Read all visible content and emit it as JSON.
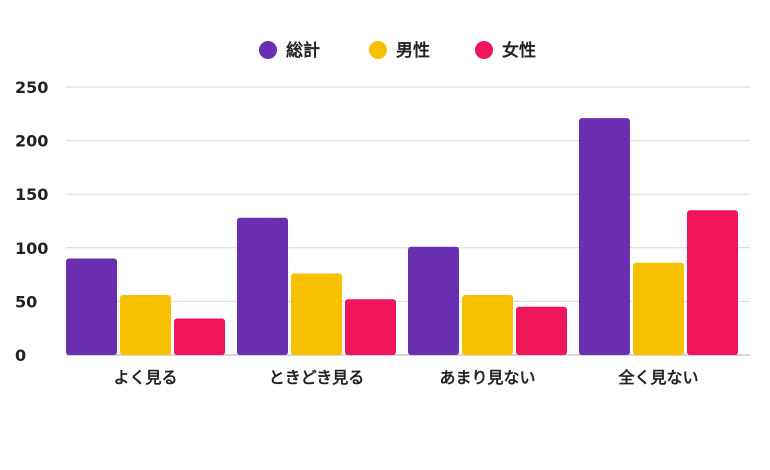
{
  "chart_data": {
    "type": "bar",
    "categories": [
      "よく見る",
      "ときどき見る",
      "あまり見ない",
      "全く見ない"
    ],
    "series": [
      {
        "name": "総計",
        "color": "#6a2fb0",
        "values": [
          90,
          128,
          101,
          221
        ]
      },
      {
        "name": "男性",
        "color": "#f8c100",
        "values": [
          56,
          76,
          56,
          86
        ]
      },
      {
        "name": "女性",
        "color": "#f01459",
        "values": [
          34,
          52,
          45,
          135
        ]
      }
    ],
    "title": "",
    "xlabel": "",
    "ylabel": "",
    "ylim": [
      0,
      250
    ],
    "yticks": [
      "0",
      "50",
      "100",
      "150",
      "200",
      "250"
    ],
    "grid": true,
    "legend": "top-center"
  }
}
